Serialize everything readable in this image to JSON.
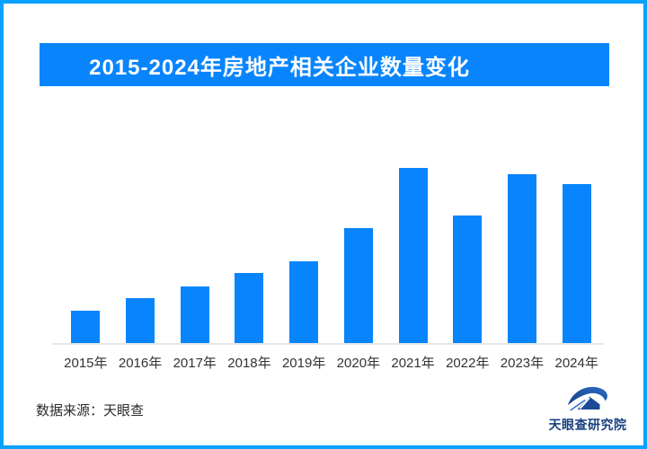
{
  "page": {
    "background": "#FFFFFF",
    "frame_border_color": "#0AA2FF"
  },
  "header": {
    "title": "2015-2024年房地产相关企业数量变化",
    "background": "#0885FC",
    "text_color": "#FFFFFF"
  },
  "chart_data": {
    "type": "bar",
    "title": "2015-2024年房地产相关企业数量变化",
    "categories": [
      "2015年",
      "2016年",
      "2017年",
      "2018年",
      "2019年",
      "2020年",
      "2021年",
      "2022年",
      "2023年",
      "2024年"
    ],
    "values": [
      18.5,
      25.6,
      32.3,
      40.0,
      46.7,
      65.6,
      100.0,
      72.8,
      96.4,
      90.8
    ],
    "value_scale": "relative heights, 2021 peak = 100 (no numeric y-axis shown in chart)",
    "xlabel": "",
    "ylabel": "",
    "ylim": [
      0,
      100
    ],
    "grid": false,
    "legend": false,
    "bar_color": "#0885FC",
    "axis_line_color": "#E4E6E8",
    "tick_label_color": "#333333"
  },
  "footer": {
    "source_label": "数据来源：天眼查",
    "logo_text": "天眼查研究院"
  }
}
